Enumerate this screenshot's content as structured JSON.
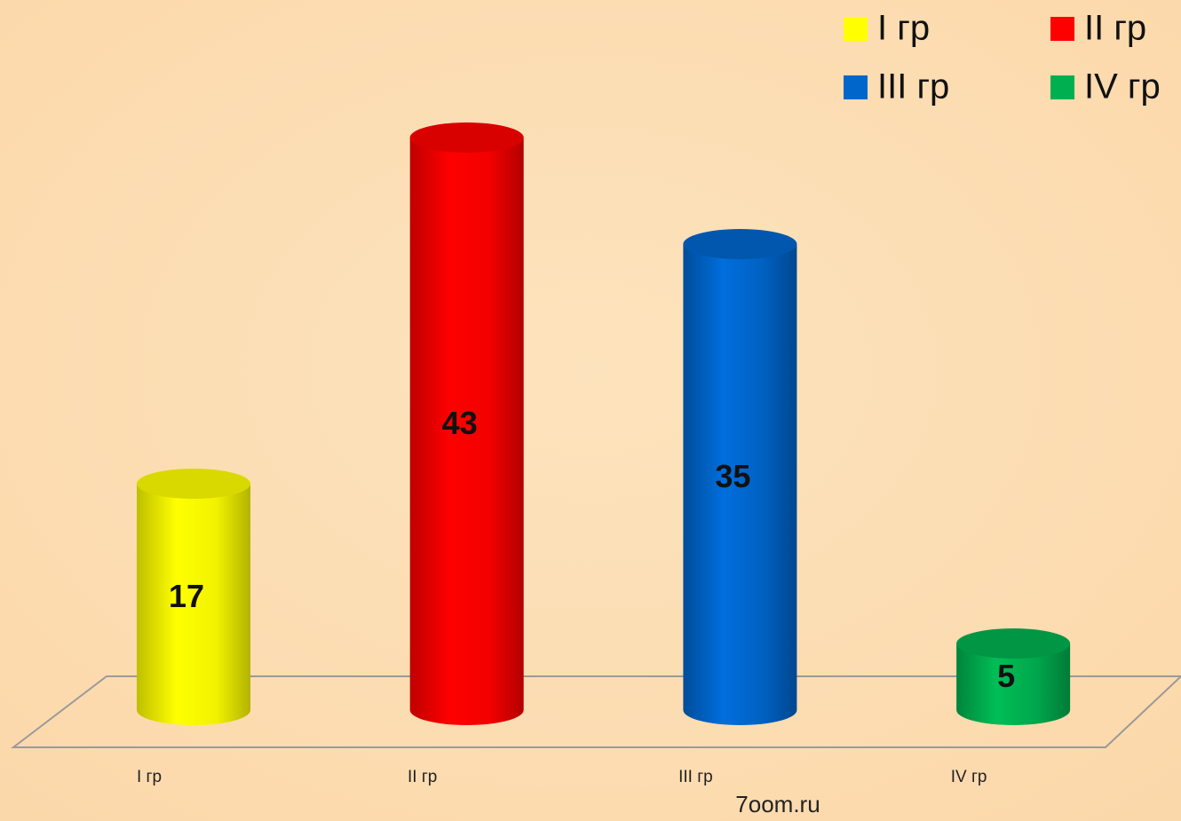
{
  "chart_data": {
    "type": "bar3d-cylinder",
    "categories": [
      "I гр",
      "II гр",
      "III гр",
      "IV гр"
    ],
    "values": [
      17,
      43,
      35,
      5
    ],
    "colors": [
      "#ffff00",
      "#ff0000",
      "#0066cc",
      "#00b050"
    ],
    "ylim": [
      0,
      50
    ],
    "legend": "top-right",
    "watermark": "7oom.ru"
  }
}
